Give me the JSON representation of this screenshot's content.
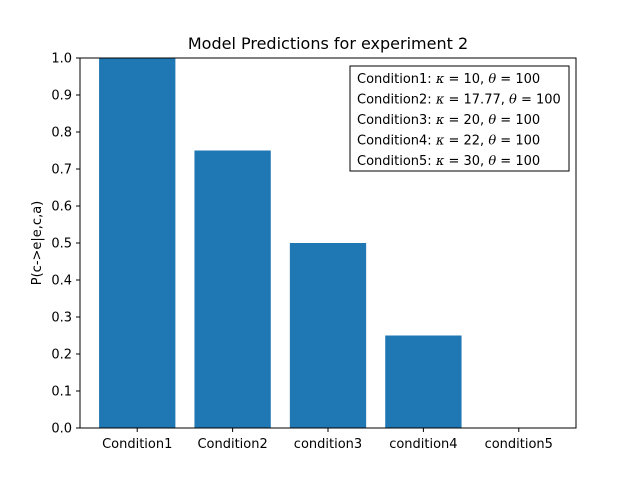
{
  "chart_data": {
    "type": "bar",
    "title": "Model Predictions for experiment 2",
    "xlabel": "",
    "ylabel": "P(c->e|e,c,a)",
    "categories": [
      "Condition1",
      "Condition2",
      "condition3",
      "condition4",
      "condition5"
    ],
    "values": [
      1.0,
      0.75,
      0.5,
      0.25,
      0.0
    ],
    "ylim": [
      0,
      1.0
    ],
    "yticks": [
      "0.0",
      "0.1",
      "0.2",
      "0.3",
      "0.4",
      "0.5",
      "0.6",
      "0.7",
      "0.8",
      "0.9",
      "1.0"
    ],
    "bar_color": "#1f77b4",
    "grid": false,
    "legend_placement": "top-right",
    "legend": [
      {
        "prefix": "Condition1: ",
        "kappa": "10",
        "theta": "100"
      },
      {
        "prefix": "Condition2: ",
        "kappa": "17.77",
        "theta": "100"
      },
      {
        "prefix": "Condition3: ",
        "kappa": "20",
        "theta": "100"
      },
      {
        "prefix": "Condition4: ",
        "kappa": "22",
        "theta": "100"
      },
      {
        "prefix": "Condition5: ",
        "kappa": "30",
        "theta": "100"
      }
    ]
  }
}
